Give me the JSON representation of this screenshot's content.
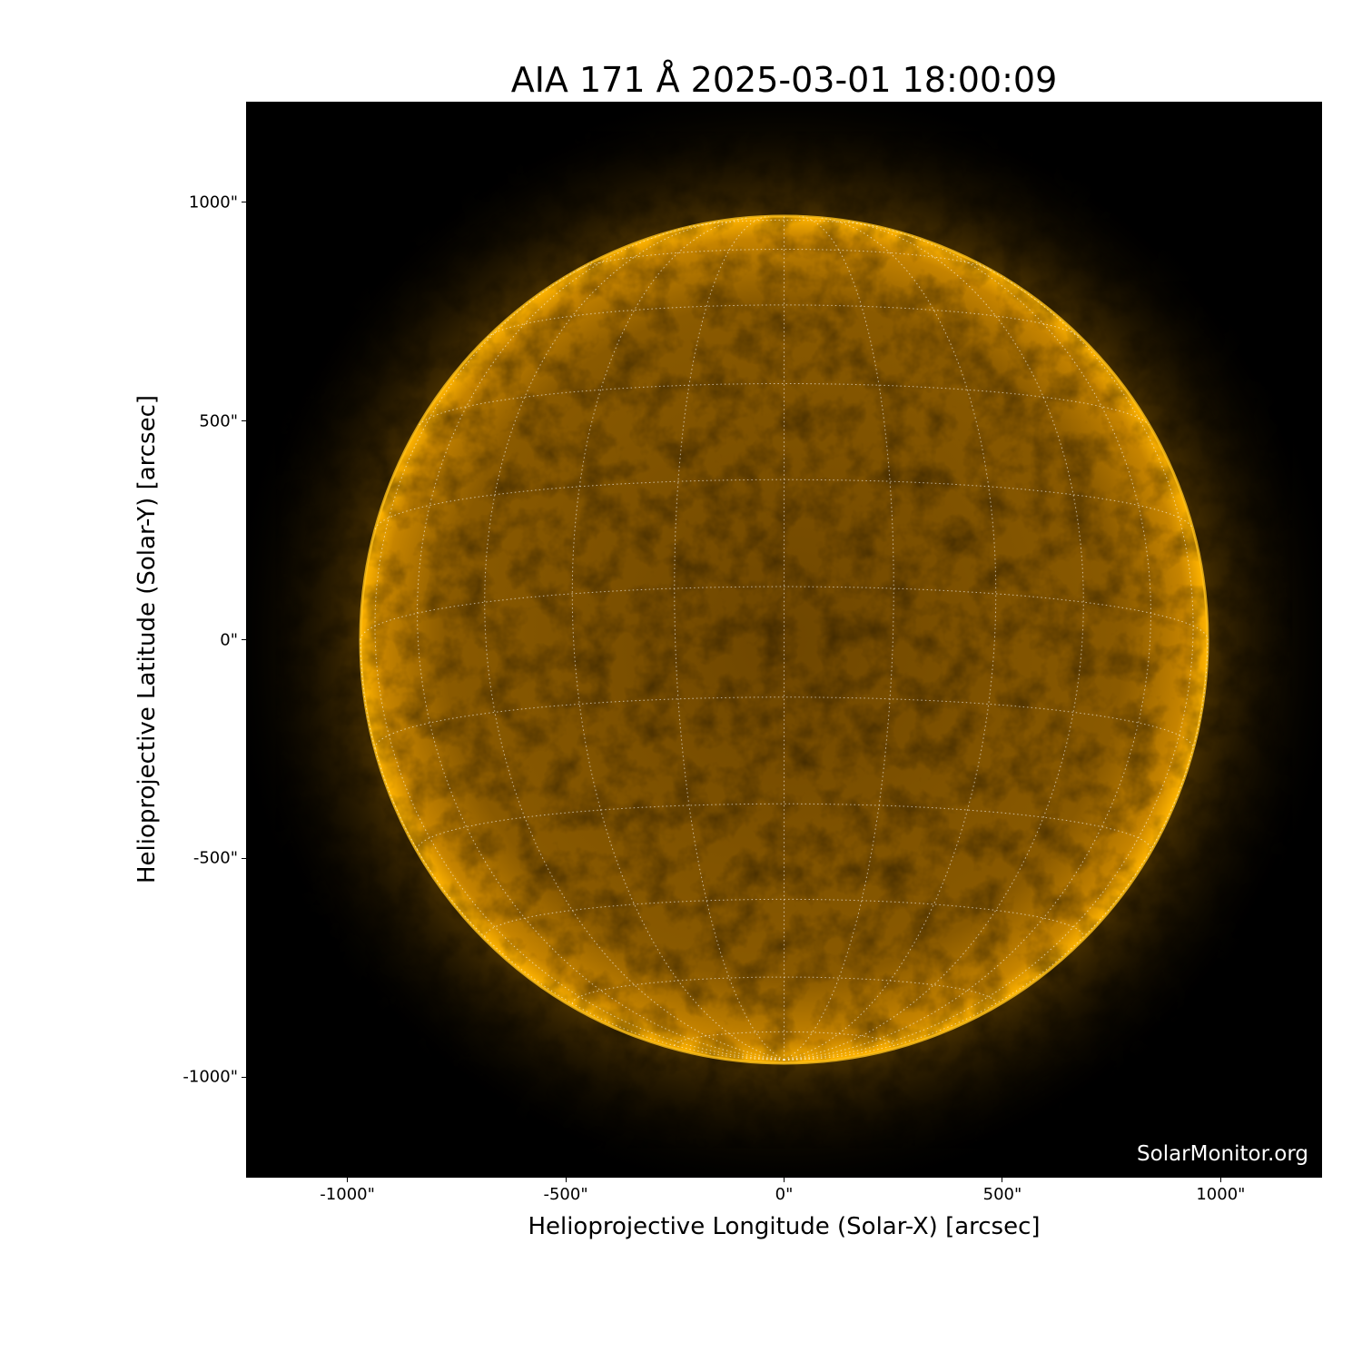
{
  "chart_data": {
    "type": "image",
    "title": "AIA 171 Å 2025-03-01 18:00:09",
    "xlabel": "Helioprojective Longitude (Solar-X) [arcsec]",
    "ylabel": "Helioprojective Latitude (Solar-Y) [arcsec]",
    "xlim": [
      -1230,
      1230
    ],
    "ylim": [
      -1228,
      1228
    ],
    "x_ticks": [
      -1000,
      -500,
      0,
      500,
      1000
    ],
    "x_tick_labels": [
      "-1000\"",
      "-500\"",
      "0\"",
      "500\"",
      "1000\""
    ],
    "y_ticks": [
      1000,
      500,
      0,
      -500,
      -1000
    ],
    "y_tick_labels": [
      "1000\"",
      "500\"",
      "0\"",
      "-500\"",
      "-1000\""
    ],
    "solar_radius_arcsec": 970,
    "grid": "heliographic lat/lon, dotted white, 15° spacing",
    "colormap": "sdoaia171",
    "colors": {
      "background": "#000000",
      "disk": "#8a5a00",
      "corona": "#ffb000",
      "grid": "#ffffff"
    }
  },
  "watermark": "SolarMonitor.org"
}
